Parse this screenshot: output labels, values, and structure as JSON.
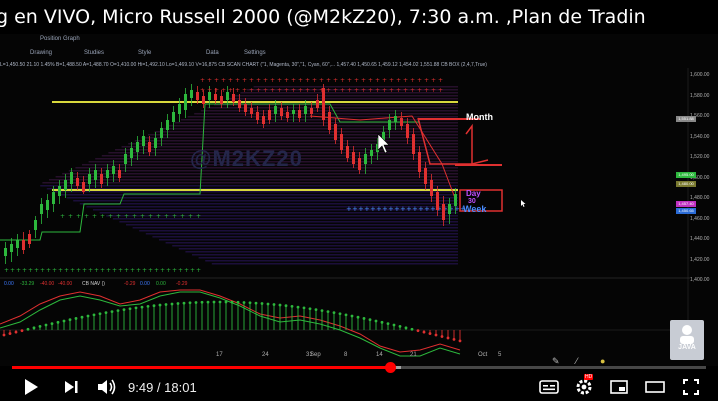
{
  "video": {
    "title": "g en VIVO, Micro Russell 2000 (@M2kZ20), 7:30 a.m. ,Plan de Tradin",
    "duration_current": "9:49",
    "duration_separator": " / ",
    "duration_total": "18:01",
    "progress_fraction": 0.545,
    "buffered_fraction": 0.56
  },
  "chart": {
    "tab_label": "Position Graph",
    "toolbar": [
      "Drawing",
      "Studies",
      "Data",
      "Settings"
    ],
    "header_text": "L=1,450.50 21.10 1.45% B=1,488.50 A=1,488.70 O=1,410.00 Hi=1,492.10 Lo=1,469.10 V=16,875 CB SCAN CHART (\"1, Magenta, 30\",\"1, Cyan, 60\",... 1,457.40 1,450.65 1,459.12 1,454.02 1,551.88 CB BOX (2,4,7,True)",
    "watermark": "@M2KZ20",
    "price_labels": [
      "1,600.00",
      "1,580.00",
      "1,560.00",
      "1,540.00",
      "1,520.00",
      "1,500.00",
      "1,480.00",
      "1,460.00",
      "1,440.00",
      "1,420.00",
      "1,400.00"
    ],
    "price_tags": [
      {
        "text": "1,551.88",
        "color": "#888888"
      },
      {
        "text": "1,495.00",
        "color": "#2db83d"
      },
      {
        "text": "1,480.00",
        "color": "#7a7a30"
      },
      {
        "text": "1,457.40",
        "color": "#c030c0"
      },
      {
        "text": "1,450.65",
        "color": "#2a6bd6"
      }
    ],
    "dates": [
      "17",
      "24",
      "31",
      "Sep",
      "8",
      "14",
      "21",
      "Oct",
      "5"
    ],
    "level_labels": {
      "month": "Month",
      "day": "Day",
      "day_num": "30",
      "week": "Week"
    },
    "indicator_labels": [
      {
        "text": "0.00",
        "color": "#3f7bff"
      },
      {
        "text": "-33.29",
        "color": "#2db83d"
      },
      {
        "text": "-40.00",
        "color": "#e03030"
      },
      {
        "text": "-40.00",
        "color": "#e03030"
      },
      {
        "text": "CB NAV ()",
        "color": "#d0d0d0"
      },
      {
        "text": "-0.29",
        "color": "#e03030"
      },
      {
        "text": "0.00",
        "color": "#3f7bff"
      },
      {
        "text": "0.00",
        "color": "#2db83d"
      },
      {
        "text": "-0.29",
        "color": "#e03030"
      }
    ]
  },
  "channel_logo": {
    "text": "JAVA"
  },
  "player_icons": {
    "play": "play-icon",
    "next": "next-icon",
    "volume": "volume-icon",
    "subtitles": "subtitles-icon",
    "settings": "gear-icon",
    "miniplayer": "miniplayer-icon",
    "theater": "theater-icon",
    "fullscreen": "fullscreen-icon"
  },
  "hd_badge": "HD",
  "colors": {
    "accent": "#ff0000",
    "bull": "#2db83d",
    "bear": "#e03030",
    "yellow": "#d8d83c",
    "magenta": "#c050ff",
    "cyan": "#4a8cff"
  }
}
